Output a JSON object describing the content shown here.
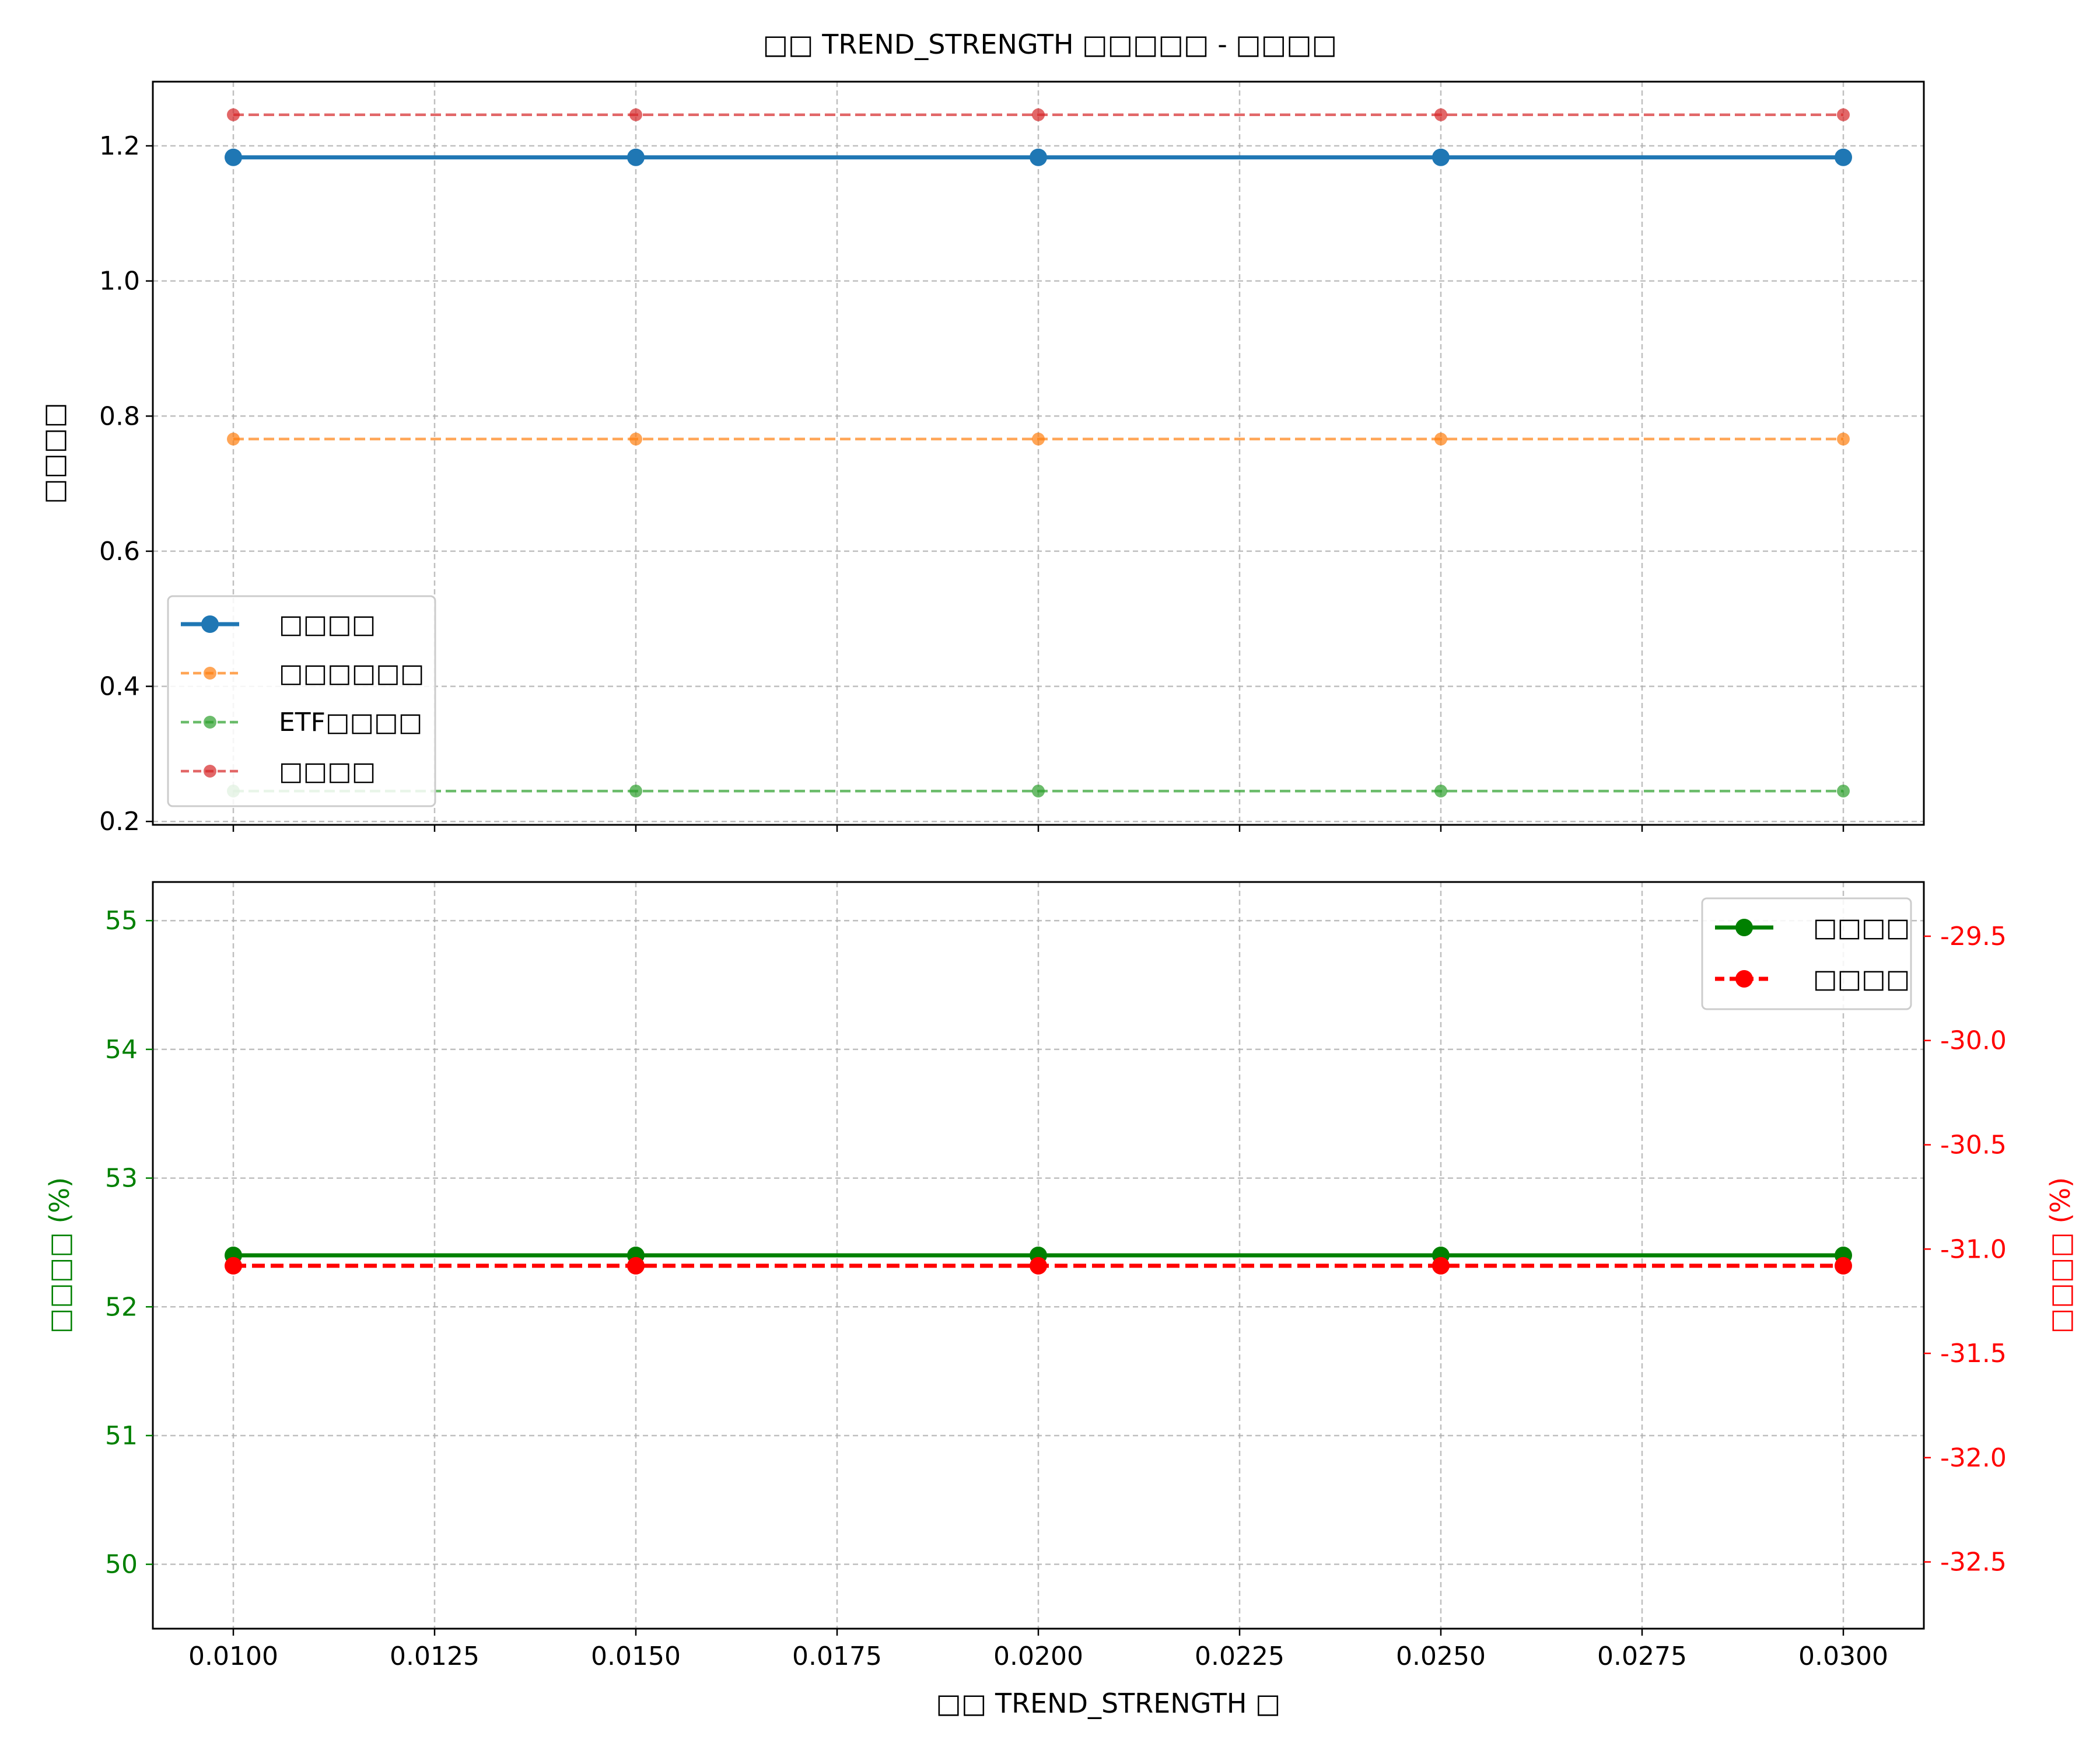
{
  "chart_data": [
    {
      "type": "line",
      "title": "□□ TREND_STRENGTH □□□□□ - □□□□",
      "xlabel": "",
      "ylabel": "□□□□",
      "x": [
        0.01,
        0.015,
        0.02,
        0.025,
        0.03
      ],
      "xlim": [
        0.009,
        0.031
      ],
      "ylim": [
        0.195,
        1.295
      ],
      "xticks": [
        "0.0100",
        "0.0125",
        "0.0150",
        "0.0175",
        "0.0200",
        "0.0225",
        "0.0250",
        "0.0275",
        "0.0300"
      ],
      "yticks": [
        "0.2",
        "0.4",
        "0.6",
        "0.8",
        "1.0",
        "1.2"
      ],
      "grid": true,
      "legend_position": "lower-left",
      "series": [
        {
          "name": "□□□□",
          "values": [
            1.183,
            1.183,
            1.183,
            1.183,
            1.183
          ],
          "color": "#1f77b4",
          "style": "solid"
        },
        {
          "name": "□□□□□□",
          "values": [
            0.766,
            0.766,
            0.766,
            0.766,
            0.766
          ],
          "color": "#ff7f0e",
          "style": "dashed"
        },
        {
          "name": "ETF□□□□",
          "values": [
            0.245,
            0.245,
            0.245,
            0.245,
            0.245
          ],
          "color": "#2ca02c",
          "style": "dashed"
        },
        {
          "name": "□□□□",
          "values": [
            1.246,
            1.246,
            1.246,
            1.246,
            1.246
          ],
          "color": "#d62728",
          "style": "dashed"
        }
      ]
    },
    {
      "type": "line",
      "title": "",
      "xlabel": "□□ TREND_STRENGTH □",
      "ylabel": "□□□□ (%)",
      "ylabel_right": "□□□□ (%)",
      "x": [
        0.01,
        0.015,
        0.02,
        0.025,
        0.03
      ],
      "xlim": [
        0.009,
        0.031
      ],
      "ylim": [
        49.5,
        55.3
      ],
      "ylim_right": [
        -32.82,
        -29.24
      ],
      "xticks": [
        "0.0100",
        "0.0125",
        "0.0150",
        "0.0175",
        "0.0200",
        "0.0225",
        "0.0250",
        "0.0275",
        "0.0300"
      ],
      "yticks": [
        "50",
        "51",
        "52",
        "53",
        "54",
        "55"
      ],
      "yticks_right": [
        "-32.5",
        "-32.0",
        "-31.5",
        "-31.0",
        "-30.5",
        "-30.0",
        "-29.5"
      ],
      "grid": true,
      "legend_position": "top-right",
      "series": [
        {
          "name": "□□□□",
          "axis": "left",
          "values": [
            52.4,
            52.4,
            52.4,
            52.4,
            52.4
          ],
          "color": "#008000",
          "style": "solid"
        },
        {
          "name": "□□□□",
          "axis": "right",
          "values": [
            -31.08,
            -31.08,
            -31.08,
            -31.08,
            -31.08
          ],
          "color": "#ff0000",
          "style": "dashed"
        }
      ]
    }
  ]
}
